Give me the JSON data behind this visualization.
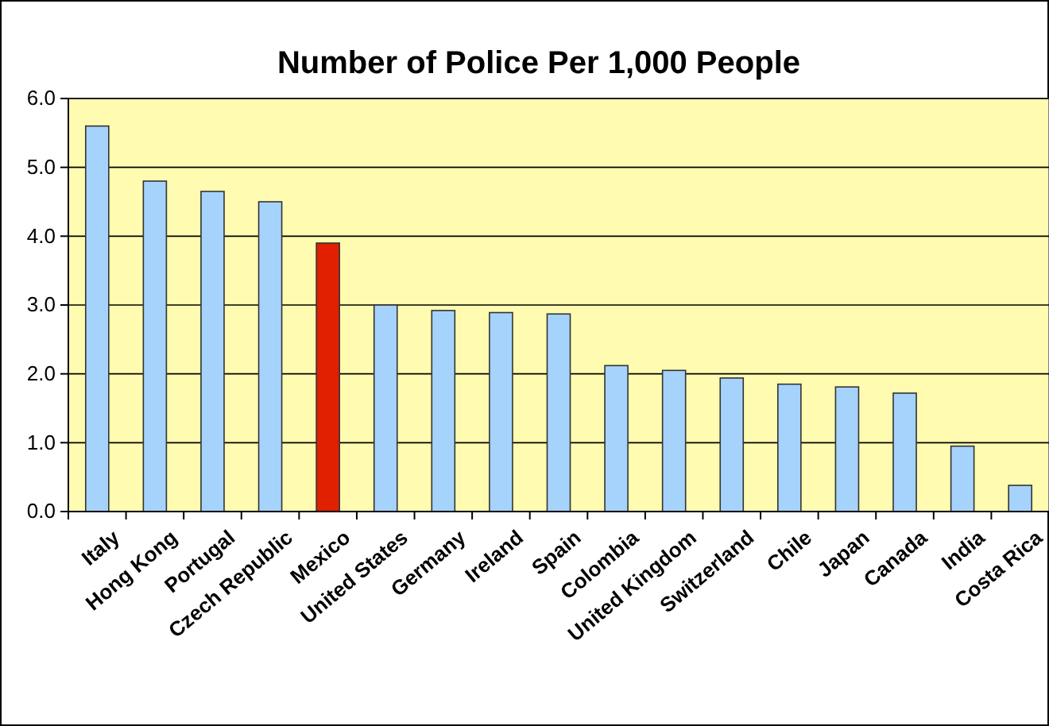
{
  "chart_data": {
    "type": "bar",
    "title": "Number of Police Per 1,000 People",
    "categories": [
      "Italy",
      "Hong Kong",
      "Portugal",
      "Czech Republic",
      "Mexico",
      "United States",
      "Germany",
      "Ireland",
      "Spain",
      "Colombia",
      "United Kingdom",
      "Switzerland",
      "Chile",
      "Japan",
      "Canada",
      "India",
      "Costa Rica"
    ],
    "values": [
      5.6,
      4.8,
      4.65,
      4.5,
      3.9,
      3.0,
      2.92,
      2.89,
      2.87,
      2.12,
      2.05,
      1.94,
      1.85,
      1.81,
      1.72,
      0.95,
      0.38
    ],
    "colors": [
      "#a6d3fb",
      "#a6d3fb",
      "#a6d3fb",
      "#a6d3fb",
      "#e02000",
      "#a6d3fb",
      "#a6d3fb",
      "#a6d3fb",
      "#a6d3fb",
      "#a6d3fb",
      "#a6d3fb",
      "#a6d3fb",
      "#a6d3fb",
      "#a6d3fb",
      "#a6d3fb",
      "#a6d3fb",
      "#a6d3fb"
    ],
    "ylim": [
      0,
      6
    ],
    "yticks": [
      {
        "value": 0,
        "label": "0.0"
      },
      {
        "value": 1,
        "label": "1.0"
      },
      {
        "value": 2,
        "label": "2.0"
      },
      {
        "value": 3,
        "label": "3.0"
      },
      {
        "value": 4,
        "label": "4.0"
      },
      {
        "value": 5,
        "label": "5.0"
      },
      {
        "value": 6,
        "label": "6.0"
      }
    ],
    "grid": "y"
  }
}
